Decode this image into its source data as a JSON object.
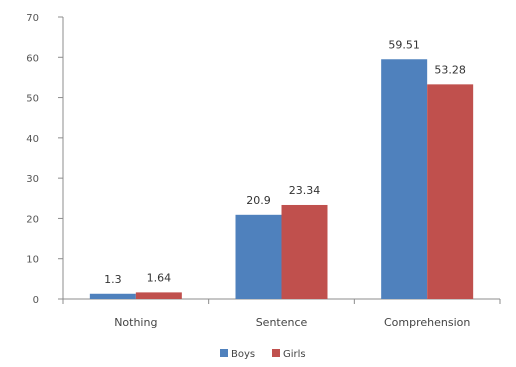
{
  "chart_data": {
    "type": "bar",
    "categories": [
      "Nothing",
      "Sentence",
      "Comprehension"
    ],
    "series": [
      {
        "name": "Boys",
        "values": [
          1.3,
          20.9,
          59.51
        ],
        "labels": [
          "1.3",
          "20.9",
          "59.51"
        ],
        "color": "#4F81BD"
      },
      {
        "name": "Girls",
        "values": [
          1.64,
          23.34,
          53.28
        ],
        "labels": [
          "1.64",
          "23.34",
          "53.28"
        ],
        "color": "#C0504D"
      }
    ],
    "yticks": [
      "0",
      "10",
      "20",
      "30",
      "40",
      "50",
      "60",
      "70"
    ],
    "ylim": [
      0,
      70
    ],
    "grid": false,
    "legend_position": "bottom"
  }
}
